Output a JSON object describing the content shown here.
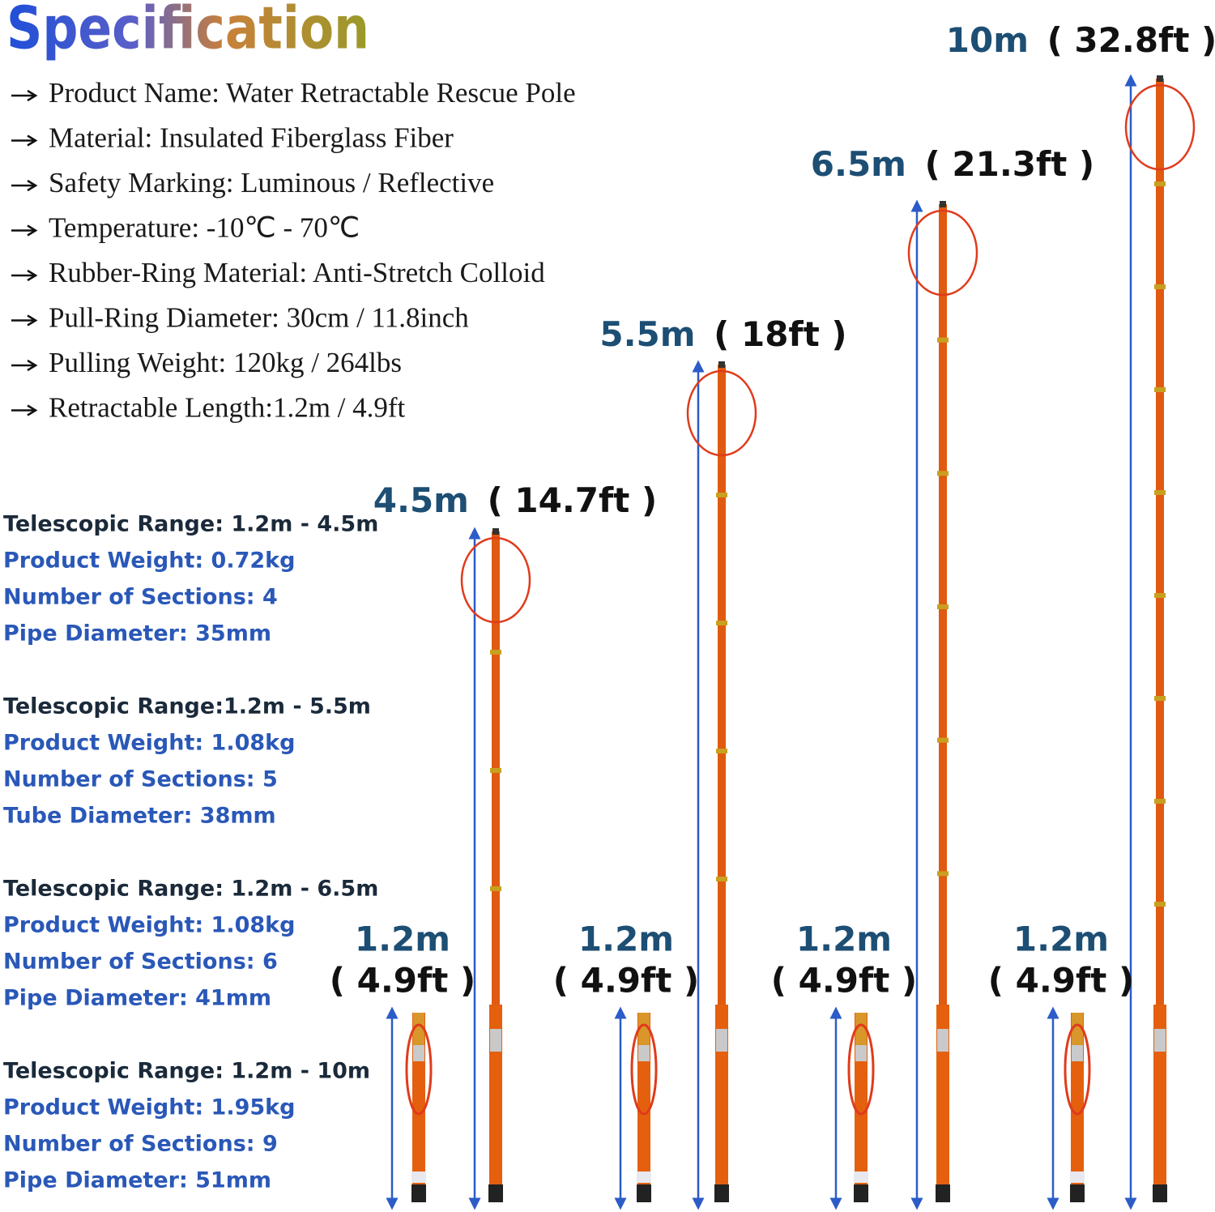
{
  "title": "Specification",
  "features": [
    "Product Name: Water Retractable Rescue Pole",
    "Material: Insulated Fiberglass Fiber",
    "Safety Marking: Luminous / Reflective",
    "Temperature: -10℃ - 70℃",
    "Rubber-Ring Material: Anti-Stretch Colloid",
    "Pull-Ring Diameter: 30cm / 11.8inch",
    "Pulling Weight: 120kg / 264lbs",
    "Retractable Length:1.2m / 4.9ft"
  ],
  "spec_groups": [
    [
      "Telescopic Range: 1.2m - 4.5m",
      "Product Weight: 0.72kg",
      "Number of Sections: 4",
      "Pipe Diameter: 35mm"
    ],
    [
      "Telescopic Range:1.2m - 5.5m",
      "Product Weight: 1.08kg",
      "Number of Sections: 5",
      "Tube Diameter: 38mm"
    ],
    [
      "Telescopic Range: 1.2m - 6.5m",
      "Product Weight: 1.08kg",
      "Number of Sections: 6",
      "Pipe Diameter: 41mm"
    ],
    [
      "Telescopic Range: 1.2m - 10m",
      "Product Weight: 1.95kg",
      "Number of Sections: 9",
      "Pipe Diameter: 51mm"
    ]
  ],
  "extended_poles": [
    {
      "length": "4.5m",
      "imperial": "( 14.7ft )"
    },
    {
      "length": "5.5m",
      "imperial": "( 18ft )"
    },
    {
      "length": "6.5m",
      "imperial": "( 21.3ft )"
    },
    {
      "length": "10m",
      "imperial": "( 32.8ft )"
    }
  ],
  "collapsed_poles": [
    {
      "length": "1.2m",
      "imperial": "( 4.9ft )"
    },
    {
      "length": "1.2m",
      "imperial": "( 4.9ft )"
    },
    {
      "length": "1.2m",
      "imperial": "( 4.9ft )"
    },
    {
      "length": "1.2m",
      "imperial": "( 4.9ft )"
    }
  ]
}
